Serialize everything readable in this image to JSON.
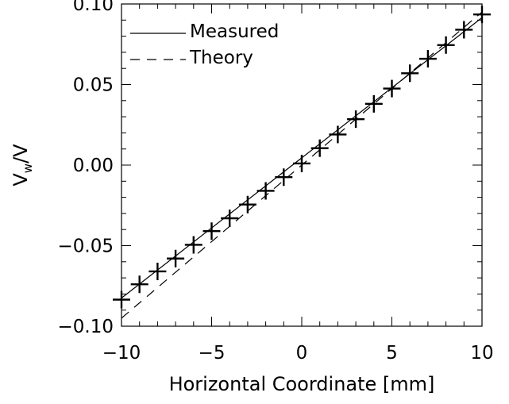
{
  "chart_data": {
    "type": "line",
    "xlabel": "Horizontal Coordinate [mm]",
    "ylabel": "V_w/V",
    "xlim": [
      -10,
      10
    ],
    "ylim": [
      -0.1,
      0.1
    ],
    "x_ticks": [
      -10,
      -5,
      0,
      5,
      10
    ],
    "x_tick_labels": [
      "−10",
      "−5",
      "0",
      "5",
      "10"
    ],
    "y_ticks": [
      -0.1,
      -0.05,
      0.0,
      0.05,
      0.1
    ],
    "y_tick_labels": [
      "−0.10",
      "−0.05",
      "0.00",
      "0.05",
      "0.10"
    ],
    "legend_position": "top-left",
    "grid": false,
    "series": [
      {
        "name": "Measured",
        "style": "solid",
        "x": [
          -10,
          10
        ],
        "y": [
          -0.0825,
          0.0915
        ]
      },
      {
        "name": "Theory",
        "style": "dashed",
        "x": [
          -10,
          10
        ],
        "y": [
          -0.095,
          0.095
        ]
      }
    ],
    "points": {
      "marker": "plus",
      "x": [
        -10,
        -9,
        -8,
        -7,
        -6,
        -5,
        -4,
        -3,
        -2,
        -1,
        0,
        1,
        2,
        3,
        4,
        5,
        6,
        7,
        8,
        9,
        10
      ],
      "y": [
        -0.0835,
        -0.074,
        -0.066,
        -0.058,
        -0.0495,
        -0.041,
        -0.033,
        -0.0245,
        -0.016,
        -0.0075,
        0.001,
        0.0105,
        0.019,
        0.0285,
        0.038,
        0.0475,
        0.057,
        0.066,
        0.0745,
        0.084,
        0.0935
      ]
    }
  }
}
